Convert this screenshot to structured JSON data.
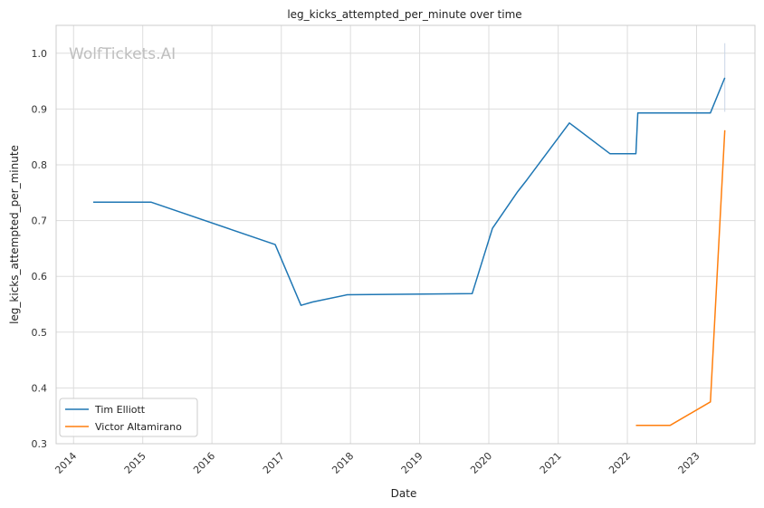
{
  "chart_data": {
    "type": "line",
    "title": "leg_kicks_attempted_per_minute over time",
    "xlabel": "Date",
    "ylabel": "leg_kicks_attempted_per_minute",
    "xlim": [
      "2013-10-01",
      "2023-11-05"
    ],
    "ylim": [
      0.3,
      1.05
    ],
    "x_ticks": [
      "2014",
      "2015",
      "2016",
      "2017",
      "2018",
      "2019",
      "2020",
      "2021",
      "2022",
      "2023"
    ],
    "y_ticks": [
      "0.3",
      "0.4",
      "0.5",
      "0.6",
      "0.7",
      "0.8",
      "0.9",
      "1.0"
    ],
    "grid": true,
    "legend_position": "bottom-left",
    "watermark": "WolfTickets.AI",
    "series": [
      {
        "name": "Tim Elliott",
        "color": "#1f77b4",
        "points": [
          {
            "x": "2014-04-15",
            "y": 0.733
          },
          {
            "x": "2015-02-15",
            "y": 0.733
          },
          {
            "x": "2016-11-30",
            "y": 0.657
          },
          {
            "x": "2017-04-15",
            "y": 0.548
          },
          {
            "x": "2017-06-15",
            "y": 0.554
          },
          {
            "x": "2017-12-15",
            "y": 0.567
          },
          {
            "x": "2019-10-05",
            "y": 0.569
          },
          {
            "x": "2020-01-20",
            "y": 0.686
          },
          {
            "x": "2020-06-01",
            "y": 0.752
          },
          {
            "x": "2020-07-20",
            "y": 0.773
          },
          {
            "x": "2021-03-01",
            "y": 0.875
          },
          {
            "x": "2021-10-01",
            "y": 0.82
          },
          {
            "x": "2022-02-15",
            "y": 0.82
          },
          {
            "x": "2022-02-25",
            "y": 0.893
          },
          {
            "x": "2023-03-15",
            "y": 0.893
          },
          {
            "x": "2023-05-30",
            "y": 0.956
          }
        ]
      },
      {
        "name": "Victor Altamirano",
        "color": "#ff7f0e",
        "points": [
          {
            "x": "2022-02-15",
            "y": 0.333
          },
          {
            "x": "2022-08-15",
            "y": 0.333
          },
          {
            "x": "2023-03-15",
            "y": 0.375
          },
          {
            "x": "2023-05-30",
            "y": 0.862
          }
        ]
      }
    ],
    "error_bar": {
      "x": "2023-05-30",
      "y_low": 0.895,
      "y_high": 1.018
    }
  }
}
